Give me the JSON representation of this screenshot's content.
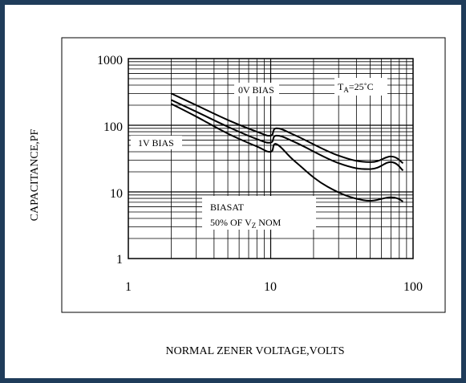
{
  "chart_data": {
    "type": "line",
    "xlabel": "NORMAL ZENER VOLTAGE,VOLTS",
    "ylabel": "CAPACITANCE,PF",
    "xscale": "log",
    "yscale": "log",
    "xlim": [
      1,
      100
    ],
    "ylim": [
      1,
      1000
    ],
    "grid": true,
    "xticks": [
      "1",
      "10",
      "100"
    ],
    "yticks": [
      "1",
      "10",
      "100",
      "1000"
    ],
    "annotations": {
      "temp": {
        "main": "T",
        "sub": "A",
        "rest": "=25˚C"
      },
      "bias0": "0V BIAS",
      "bias1": "1V BIAS",
      "biasat_line1": "BIASAT",
      "biasat_line2": {
        "main": "50% OF V",
        "sub": "Z",
        "rest": " NOM"
      }
    },
    "series": [
      {
        "x": [
          2,
          3,
          5,
          8,
          10,
          11,
          15,
          30,
          50,
          70,
          85
        ],
        "y": [
          300,
          200,
          120,
          80,
          70,
          90,
          70,
          35,
          28,
          34,
          27
        ]
      },
      {
        "x": [
          2,
          3,
          5,
          8,
          10,
          11,
          15,
          30,
          50,
          70,
          85
        ],
        "y": [
          240,
          160,
          95,
          62,
          55,
          70,
          55,
          27,
          22,
          28,
          21
        ]
      },
      {
        "x": [
          2,
          3,
          5,
          8,
          10,
          11,
          15,
          25,
          45,
          70,
          85
        ],
        "y": [
          210,
          135,
          75,
          48,
          40,
          52,
          28,
          12,
          7.5,
          8.3,
          7.2
        ]
      }
    ],
    "colors": {
      "line": "#000000",
      "frame_border": "#1f3c5a"
    }
  }
}
